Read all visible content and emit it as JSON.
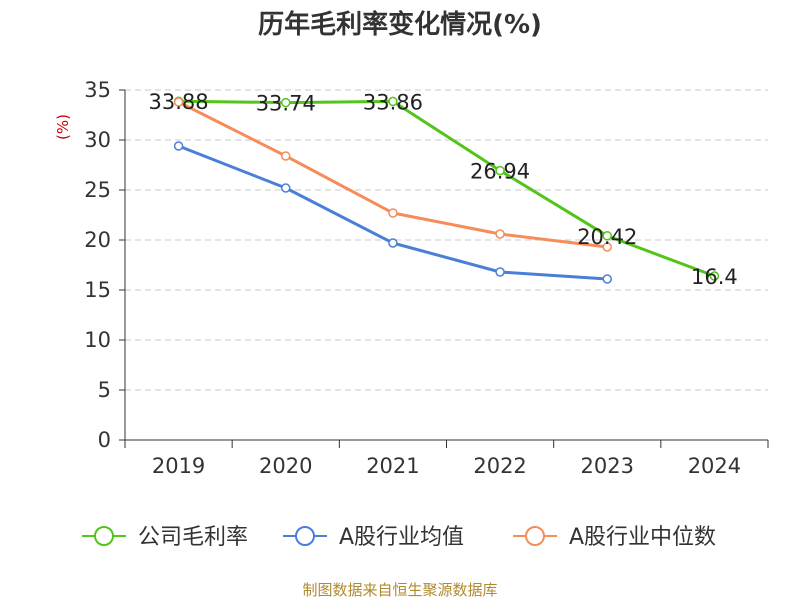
{
  "chart_data": {
    "type": "line",
    "title": "历年毛利率变化情况(%)",
    "xlabel": "",
    "ylabel": "(%)",
    "categories": [
      "2019",
      "2020",
      "2021",
      "2022",
      "2023",
      "2024"
    ],
    "ylim": [
      0,
      35
    ],
    "yticks": [
      "0",
      "5",
      "10",
      "15",
      "20",
      "25",
      "30",
      "35"
    ],
    "grid": true,
    "legend_position": "bottom",
    "series": [
      {
        "name": "公司毛利率",
        "color": "#52c41a",
        "values": [
          33.88,
          33.74,
          33.86,
          26.94,
          20.42,
          16.4
        ],
        "labels": [
          "33.88",
          "33.74",
          "33.86",
          "26.94",
          "20.42",
          "16.4"
        ]
      },
      {
        "name": "A股行业均值",
        "color": "#4a7fd8",
        "values": [
          29.4,
          25.2,
          19.7,
          16.8,
          16.1,
          null
        ]
      },
      {
        "name": "A股行业中位数",
        "color": "#f68c5a",
        "values": [
          33.8,
          28.4,
          22.7,
          20.6,
          19.3,
          null
        ]
      }
    ]
  },
  "source_text": "制图数据来自恒生聚源数据库"
}
